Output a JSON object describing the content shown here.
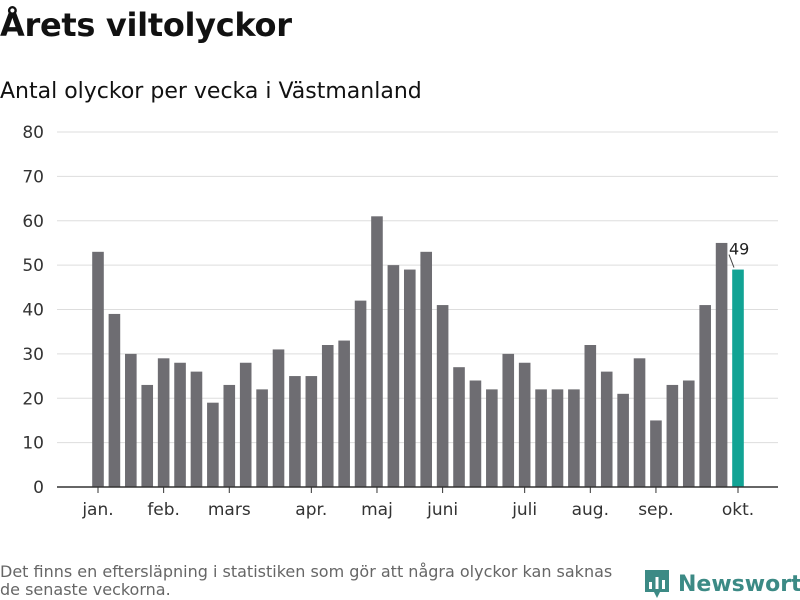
{
  "header": {
    "title": "Årets viltolyckor",
    "subtitle": "Antal olyckor per vecka i Västmanland"
  },
  "footer": {
    "note": "Det finns en eftersläpning i statistiken som gör att några olyckor kan saknas de senaste veckorna.",
    "brand": "Newsworthy"
  },
  "colors": {
    "bar": "#6e6d72",
    "highlight": "#12a394",
    "grid": "#dddddd",
    "axis": "#333333",
    "brand": "#3c8a85"
  },
  "chart_data": {
    "type": "bar",
    "title": "Antal olyckor per vecka i Västmanland",
    "xlabel": "",
    "ylabel": "",
    "ylim": [
      0,
      80
    ],
    "yticks": [
      0,
      10,
      20,
      30,
      40,
      50,
      60,
      70,
      80
    ],
    "grid": true,
    "x": [
      1,
      2,
      3,
      4,
      5,
      6,
      7,
      8,
      9,
      10,
      11,
      12,
      13,
      14,
      15,
      16,
      17,
      18,
      19,
      20,
      21,
      22,
      23,
      24,
      25,
      26,
      27,
      28,
      29,
      30,
      31,
      32,
      33,
      34,
      35,
      36,
      37,
      38,
      39,
      40
    ],
    "values": [
      53,
      39,
      30,
      23,
      29,
      28,
      26,
      19,
      23,
      28,
      22,
      31,
      25,
      25,
      32,
      33,
      42,
      61,
      50,
      49,
      53,
      41,
      27,
      24,
      22,
      30,
      28,
      22,
      22,
      22,
      32,
      26,
      21,
      29,
      15,
      23,
      24,
      41,
      55,
      49
    ],
    "month_ticks": [
      {
        "label": "jan.",
        "at": 1
      },
      {
        "label": "feb.",
        "at": 5
      },
      {
        "label": "mars",
        "at": 9
      },
      {
        "label": "apr.",
        "at": 14
      },
      {
        "label": "maj",
        "at": 18
      },
      {
        "label": "juni",
        "at": 22
      },
      {
        "label": "juli",
        "at": 27
      },
      {
        "label": "aug.",
        "at": 31
      },
      {
        "label": "sep.",
        "at": 35
      },
      {
        "label": "okt.",
        "at": 40
      }
    ],
    "highlight_index": 39,
    "annotation": {
      "text": "49",
      "index": 39
    }
  }
}
